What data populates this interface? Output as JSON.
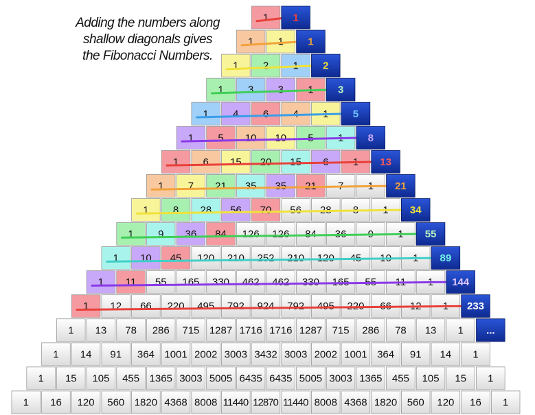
{
  "caption": {
    "line1": "Adding   the numbers along",
    "line2": "shallow diagonals gives",
    "line3": "the Fibonacci Numbers."
  },
  "pascal_rows": [
    [
      1
    ],
    [
      1,
      1
    ],
    [
      1,
      2,
      1
    ],
    [
      1,
      3,
      3,
      1
    ],
    [
      1,
      4,
      6,
      4,
      1
    ],
    [
      1,
      5,
      10,
      10,
      5,
      1
    ],
    [
      1,
      6,
      15,
      20,
      15,
      6,
      1
    ],
    [
      1,
      7,
      21,
      35,
      35,
      21,
      7,
      1
    ],
    [
      1,
      8,
      28,
      56,
      70,
      56,
      28,
      8,
      1
    ],
    [
      1,
      9,
      36,
      84,
      126,
      126,
      84,
      36,
      9,
      1
    ],
    [
      1,
      10,
      45,
      120,
      210,
      252,
      210,
      120,
      45,
      10,
      1
    ],
    [
      1,
      11,
      55,
      165,
      330,
      462,
      462,
      330,
      165,
      55,
      11,
      1
    ],
    [
      1,
      12,
      66,
      220,
      495,
      792,
      924,
      792,
      495,
      220,
      66,
      12,
      1
    ],
    [
      1,
      13,
      78,
      286,
      715,
      1287,
      1716,
      1716,
      1287,
      715,
      286,
      78,
      13,
      1
    ],
    [
      1,
      14,
      91,
      364,
      1001,
      2002,
      3003,
      3432,
      3003,
      2002,
      1001,
      364,
      91,
      14,
      1
    ],
    [
      1,
      15,
      105,
      455,
      1365,
      3003,
      5005,
      6435,
      6435,
      5005,
      3003,
      1365,
      455,
      105,
      15,
      1
    ],
    [
      1,
      16,
      120,
      560,
      1820,
      4368,
      8008,
      11440,
      12870,
      11440,
      8008,
      4368,
      1820,
      560,
      120,
      16,
      1
    ]
  ],
  "fibonacci": [
    "1",
    "1",
    "2",
    "3",
    "5",
    "8",
    "13",
    "21",
    "34",
    "55",
    "89",
    "144",
    "233",
    "..."
  ],
  "diagonal_colors": [
    "#e8403a",
    "#f2a23a",
    "#f0e23a",
    "#3fcf57",
    "#3a9ee8",
    "#8a3ae8",
    "#e8403a",
    "#f2a23a",
    "#f0e23a",
    "#3fcf57",
    "#3fcfc8",
    "#8a3ae8",
    "#e8403a"
  ],
  "cell_fill_colors": [
    "#f49aa0",
    "#f8c8a0",
    "#f8f49a",
    "#a8f0b0",
    "#a0d0f8",
    "#c8a8f8",
    "#f49aa0",
    "#f8c8a0",
    "#f8f49a",
    "#a8f0b0",
    "#a8f4ec",
    "#c8a8f8",
    "#f49aa0"
  ],
  "fib_text_colors": [
    "#e84040",
    "#f2a23a",
    "#f0e23a",
    "#b8f0c0",
    "#70c8ff",
    "#c8a8f8",
    "#ff5a5a",
    "#f2a23a",
    "#f0e23a",
    "#b8f0c0",
    "#70f0e8",
    "#e0c8ff",
    "#ffffff"
  ],
  "fib_box_color": "#1a3fb8"
}
